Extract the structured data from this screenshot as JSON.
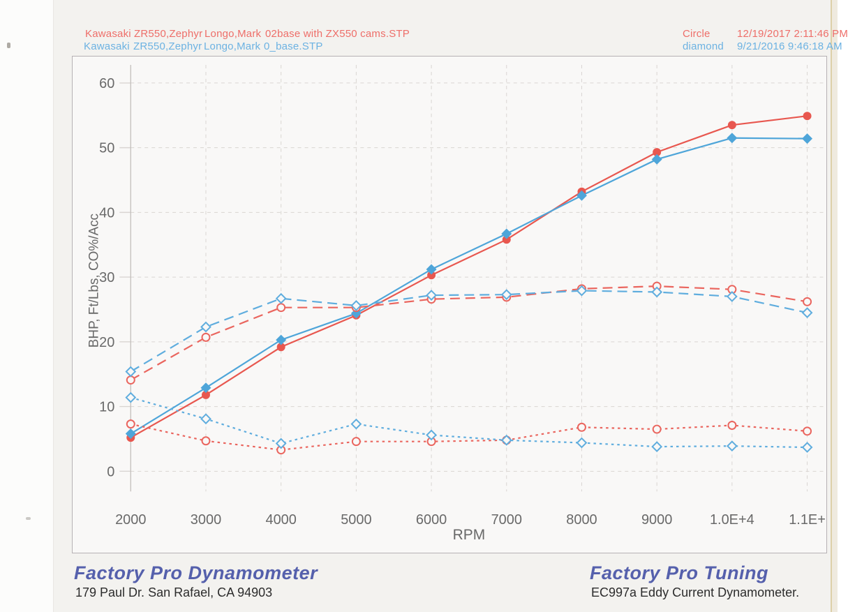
{
  "header": {
    "runs": [
      {
        "fields": [
          "Kawasaki",
          "ZR550,Zephyr",
          "Longo,Mark",
          "02base with ZX550 cams.STP"
        ],
        "marker_label": "Circle",
        "datetime": "12/19/2017 2:11:46 PM",
        "color": "#ee6e69"
      },
      {
        "fields": [
          "Kawasaki",
          "ZR550,Zephyr",
          "Longo,Mark",
          "0_base.STP"
        ],
        "marker_label": "diamond",
        "datetime": "9/21/2016 9:46:18 AM",
        "color": "#6cb2e2"
      }
    ]
  },
  "chart_data": {
    "type": "line",
    "x": [
      2000,
      3000,
      4000,
      5000,
      6000,
      7000,
      8000,
      9000,
      10000,
      11000
    ],
    "xtick_labels": [
      "2000",
      "3000",
      "4000",
      "5000",
      "6000",
      "7000",
      "8000",
      "9000",
      "1.0E+4",
      "1.1E+"
    ],
    "xlabel": "RPM",
    "ylabel": "BHP, Ft/Lbs, CO%/Acc",
    "ylim": [
      0,
      60
    ],
    "yticks": [
      0,
      10,
      20,
      30,
      40,
      50,
      60
    ],
    "grid": "dashed",
    "legend_position": "none",
    "series": [
      {
        "name": "circle-run-bhp",
        "run": "02base with ZX550 cams.STP",
        "style": "solid",
        "marker": "filled-circle",
        "color": "#e8574f",
        "values": [
          5.2,
          11.8,
          19.2,
          24.1,
          30.3,
          35.8,
          43.2,
          49.3,
          53.5,
          54.9
        ]
      },
      {
        "name": "diamond-run-bhp",
        "run": "0_base.STP",
        "style": "solid",
        "marker": "filled-diamond",
        "color": "#4ea5d9",
        "values": [
          5.8,
          12.9,
          20.3,
          24.4,
          31.2,
          36.7,
          42.6,
          48.2,
          51.5,
          51.4
        ]
      },
      {
        "name": "circle-run-torque",
        "run": "02base with ZX550 cams.STP",
        "style": "dashed",
        "marker": "open-circle",
        "color": "#ea655e",
        "values": [
          14.1,
          20.7,
          25.3,
          25.3,
          26.6,
          26.9,
          28.2,
          28.6,
          28.1,
          26.2
        ]
      },
      {
        "name": "diamond-run-torque",
        "run": "0_base.STP",
        "style": "dashed",
        "marker": "open-diamond",
        "color": "#5fadde",
        "values": [
          15.4,
          22.3,
          26.7,
          25.6,
          27.2,
          27.3,
          27.9,
          27.7,
          27.0,
          24.5
        ]
      },
      {
        "name": "circle-run-co",
        "run": "02base with ZX550 cams.STP",
        "style": "dotted",
        "marker": "open-circle",
        "color": "#ea655e",
        "values": [
          7.3,
          4.7,
          3.3,
          4.6,
          4.6,
          4.8,
          6.8,
          6.5,
          7.1,
          6.2
        ]
      },
      {
        "name": "diamond-run-co",
        "run": "0_base.STP",
        "style": "dotted",
        "marker": "open-diamond",
        "color": "#5fadde",
        "values": [
          11.4,
          8.1,
          4.3,
          7.3,
          5.6,
          4.8,
          4.4,
          3.8,
          3.9,
          3.7
        ]
      }
    ],
    "colors": {
      "grid": "#d9d5d2",
      "axis_line": "#c6c2bf",
      "tick_text": "#696969",
      "plot_bg": "#f9f8f7"
    }
  },
  "footer": {
    "left_title": "Factory Pro Dynamometer",
    "left_sub": "179 Paul Dr.  San Rafael, CA 94903",
    "right_title": "Factory Pro Tuning",
    "right_sub": "EC997a  Eddy Current Dynamometer."
  }
}
